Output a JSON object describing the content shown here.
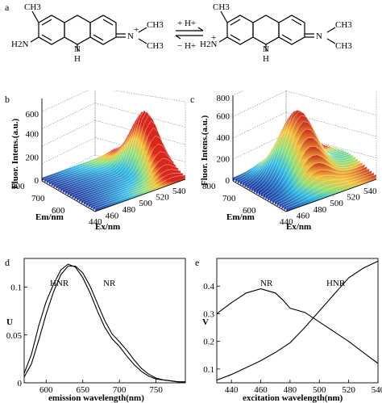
{
  "panel_labels": {
    "a": "a",
    "b": "b",
    "c": "c",
    "d": "d",
    "e": "e"
  },
  "scheme": {
    "left_labels": {
      "ch3": "CH3",
      "h2n": "H2N",
      "nh": "N",
      "h": "H",
      "nplus": "N",
      "plus": "+",
      "me1": "CH3",
      "me2": "CH3"
    },
    "right_labels": {
      "ch3": "CH3",
      "h2n": "H2N",
      "plus1": "+",
      "nh": "N",
      "h": "H",
      "n": "N",
      "me1": "CH3",
      "me2": "CH3"
    },
    "arrow_top": "+ H+",
    "arrow_bottom": "− H+"
  },
  "chart_data": [
    {
      "type": "surface3d",
      "panel": "b",
      "zlabel": "Fluor. Intens.(a.u.)",
      "ylabel": "Em/nm",
      "xlabel": "Ex/nm",
      "z_ticks": [
        "0",
        "200",
        "400",
        "600"
      ],
      "em_ticks": [
        "600",
        "700",
        "800"
      ],
      "ex_ticks": [
        "440",
        "460",
        "480",
        "500",
        "520",
        "540"
      ]
    },
    {
      "type": "surface3d",
      "panel": "c",
      "zlabel": "Fluor. Intens.(a.u.)",
      "ylabel": "Em/nm",
      "xlabel": "Ex/nm",
      "z_ticks": [
        "0",
        "200",
        "400",
        "600",
        "800"
      ],
      "em_ticks": [
        "600",
        "700",
        "800"
      ],
      "ex_ticks": [
        "440",
        "460",
        "480",
        "500",
        "520",
        "540"
      ]
    },
    {
      "type": "line",
      "panel": "d",
      "xlabel": "emission wavelength(nm)",
      "ylabel": "U",
      "xlim": [
        570,
        790
      ],
      "ylim": [
        0,
        0.13
      ],
      "x_ticks": [
        "600",
        "650",
        "700",
        "750"
      ],
      "y_ticks": [
        "0",
        "0.05",
        "0.1"
      ],
      "annotations": [
        "HNR",
        "NR"
      ],
      "series": [
        {
          "name": "HNR",
          "x": [
            570,
            580,
            590,
            600,
            610,
            620,
            630,
            640,
            650,
            660,
            670,
            680,
            690,
            700,
            710,
            720,
            730,
            740,
            750,
            760,
            770,
            780,
            790
          ],
          "values": [
            0.01,
            0.03,
            0.06,
            0.085,
            0.103,
            0.118,
            0.124,
            0.121,
            0.11,
            0.094,
            0.075,
            0.058,
            0.046,
            0.038,
            0.028,
            0.019,
            0.012,
            0.007,
            0.004,
            0.003,
            0.002,
            0.001,
            0.001
          ]
        },
        {
          "name": "NR",
          "x": [
            570,
            580,
            590,
            600,
            610,
            620,
            630,
            640,
            650,
            660,
            670,
            680,
            690,
            700,
            710,
            720,
            730,
            740,
            750,
            760,
            770,
            780,
            790
          ],
          "values": [
            0.006,
            0.02,
            0.045,
            0.072,
            0.095,
            0.113,
            0.122,
            0.122,
            0.115,
            0.101,
            0.083,
            0.065,
            0.051,
            0.043,
            0.034,
            0.024,
            0.015,
            0.009,
            0.005,
            0.003,
            0.002,
            0.001,
            0.001
          ]
        }
      ]
    },
    {
      "type": "line",
      "panel": "e",
      "xlabel": "excitation wavelength(nm)",
      "ylabel": "V",
      "xlim": [
        430,
        540
      ],
      "ylim": [
        0.05,
        0.5
      ],
      "x_ticks": [
        "440",
        "460",
        "480",
        "500",
        "520",
        "540"
      ],
      "y_ticks": [
        "0.1",
        "0.2",
        "0.3",
        "0.4"
      ],
      "annotations": [
        "NR",
        "HNR"
      ],
      "series": [
        {
          "name": "NR",
          "x": [
            430,
            440,
            450,
            460,
            470,
            475,
            480,
            490,
            500,
            510,
            520,
            530,
            540
          ],
          "values": [
            0.3,
            0.34,
            0.375,
            0.39,
            0.375,
            0.35,
            0.32,
            0.305,
            0.27,
            0.235,
            0.2,
            0.16,
            0.12
          ]
        },
        {
          "name": "HNR",
          "x": [
            430,
            440,
            450,
            460,
            470,
            480,
            490,
            500,
            510,
            520,
            530,
            540
          ],
          "values": [
            0.06,
            0.08,
            0.105,
            0.13,
            0.16,
            0.195,
            0.25,
            0.31,
            0.37,
            0.43,
            0.465,
            0.49
          ]
        }
      ]
    }
  ]
}
